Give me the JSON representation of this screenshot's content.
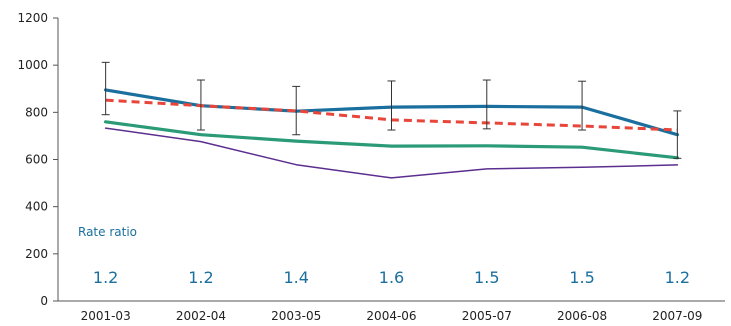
{
  "chart_data": {
    "type": "line",
    "categories": [
      "2001-03",
      "2002-04",
      "2003-05",
      "2004-06",
      "2005-07",
      "2006-08",
      "2007-09"
    ],
    "ylim": [
      0,
      1200
    ],
    "yticks": [
      0,
      200,
      400,
      600,
      800,
      1000,
      1200
    ],
    "grid": false,
    "series": [
      {
        "values": [
          895,
          828,
          805,
          822,
          825,
          822,
          705
        ],
        "color": "#1a6f9e",
        "style": "solid-thick",
        "error_low": [
          790,
          725,
          705,
          725,
          730,
          725,
          605
        ],
        "error_high": [
          1012,
          937,
          910,
          933,
          937,
          932,
          806
        ]
      },
      {
        "values": [
          852,
          828,
          806,
          768,
          755,
          742,
          725
        ],
        "color": "#e8463a",
        "style": "dashed"
      },
      {
        "values": [
          760,
          705,
          678,
          657,
          658,
          652,
          607
        ],
        "color": "#2a9a77",
        "style": "solid-thick"
      },
      {
        "values": [
          733,
          676,
          578,
          522,
          560,
          567,
          577
        ],
        "color": "#5b2e8f",
        "style": "solid-thin"
      }
    ],
    "rate_ratio": {
      "label": "Rate ratio",
      "values": [
        "1.2",
        "1.2",
        "1.4",
        "1.6",
        "1.5",
        "1.5",
        "1.2"
      ],
      "color": "#1a6f9e"
    }
  }
}
